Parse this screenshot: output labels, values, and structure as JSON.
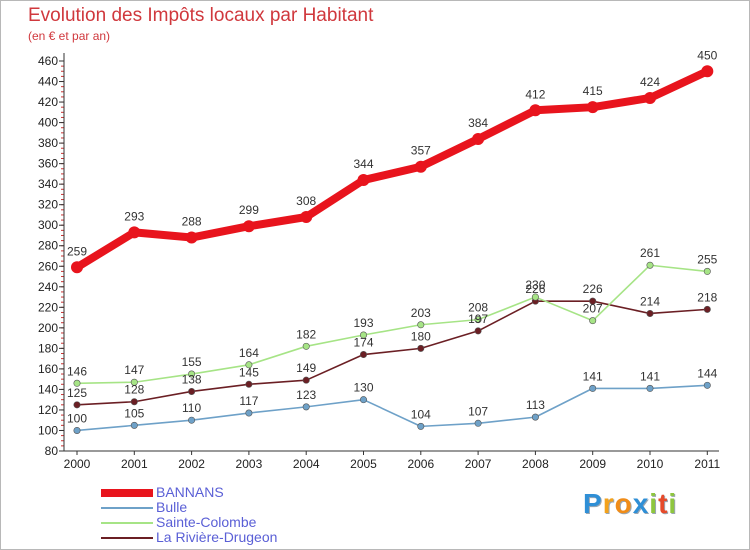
{
  "chart_data": {
    "type": "line",
    "title": "Evolution des Impôts locaux par Habitant",
    "subtitle": "(en € et par an)",
    "xlabel": "",
    "ylabel": "",
    "categories": [
      "2000",
      "2001",
      "2002",
      "2003",
      "2004",
      "2005",
      "2006",
      "2007",
      "2008",
      "2009",
      "2010",
      "2011"
    ],
    "ylim": [
      80,
      460
    ],
    "yticks": [
      80,
      100,
      120,
      140,
      160,
      180,
      200,
      220,
      240,
      260,
      280,
      300,
      320,
      340,
      360,
      380,
      400,
      420,
      440,
      460
    ],
    "grid": false,
    "legend_position": "bottom-left",
    "series": [
      {
        "name": "BANNANS",
        "color": "#e8141d",
        "values": [
          259,
          293,
          288,
          299,
          308,
          344,
          357,
          384,
          412,
          415,
          424,
          450
        ]
      },
      {
        "name": "Bulle",
        "color": "#6ea1c8",
        "values": [
          100,
          105,
          110,
          117,
          123,
          130,
          104,
          107,
          113,
          141,
          141,
          144
        ]
      },
      {
        "name": "Sainte-Colombe",
        "color": "#a6e486",
        "values": [
          146,
          147,
          155,
          164,
          182,
          193,
          203,
          208,
          230,
          207,
          261,
          255
        ]
      },
      {
        "name": "La Rivière-Drugeon",
        "color": "#6b1f24",
        "values": [
          125,
          128,
          138,
          145,
          149,
          174,
          180,
          197,
          226,
          226,
          214,
          218
        ]
      }
    ]
  },
  "brand": {
    "letters": [
      "P",
      "r",
      "o",
      "x",
      "i",
      "t",
      "i"
    ],
    "colors": [
      "#2f8fd6",
      "#f3a21c",
      "#f08c18",
      "#2f8fd6",
      "#8ec63f",
      "#e64a2a",
      "#8ec63f"
    ]
  }
}
